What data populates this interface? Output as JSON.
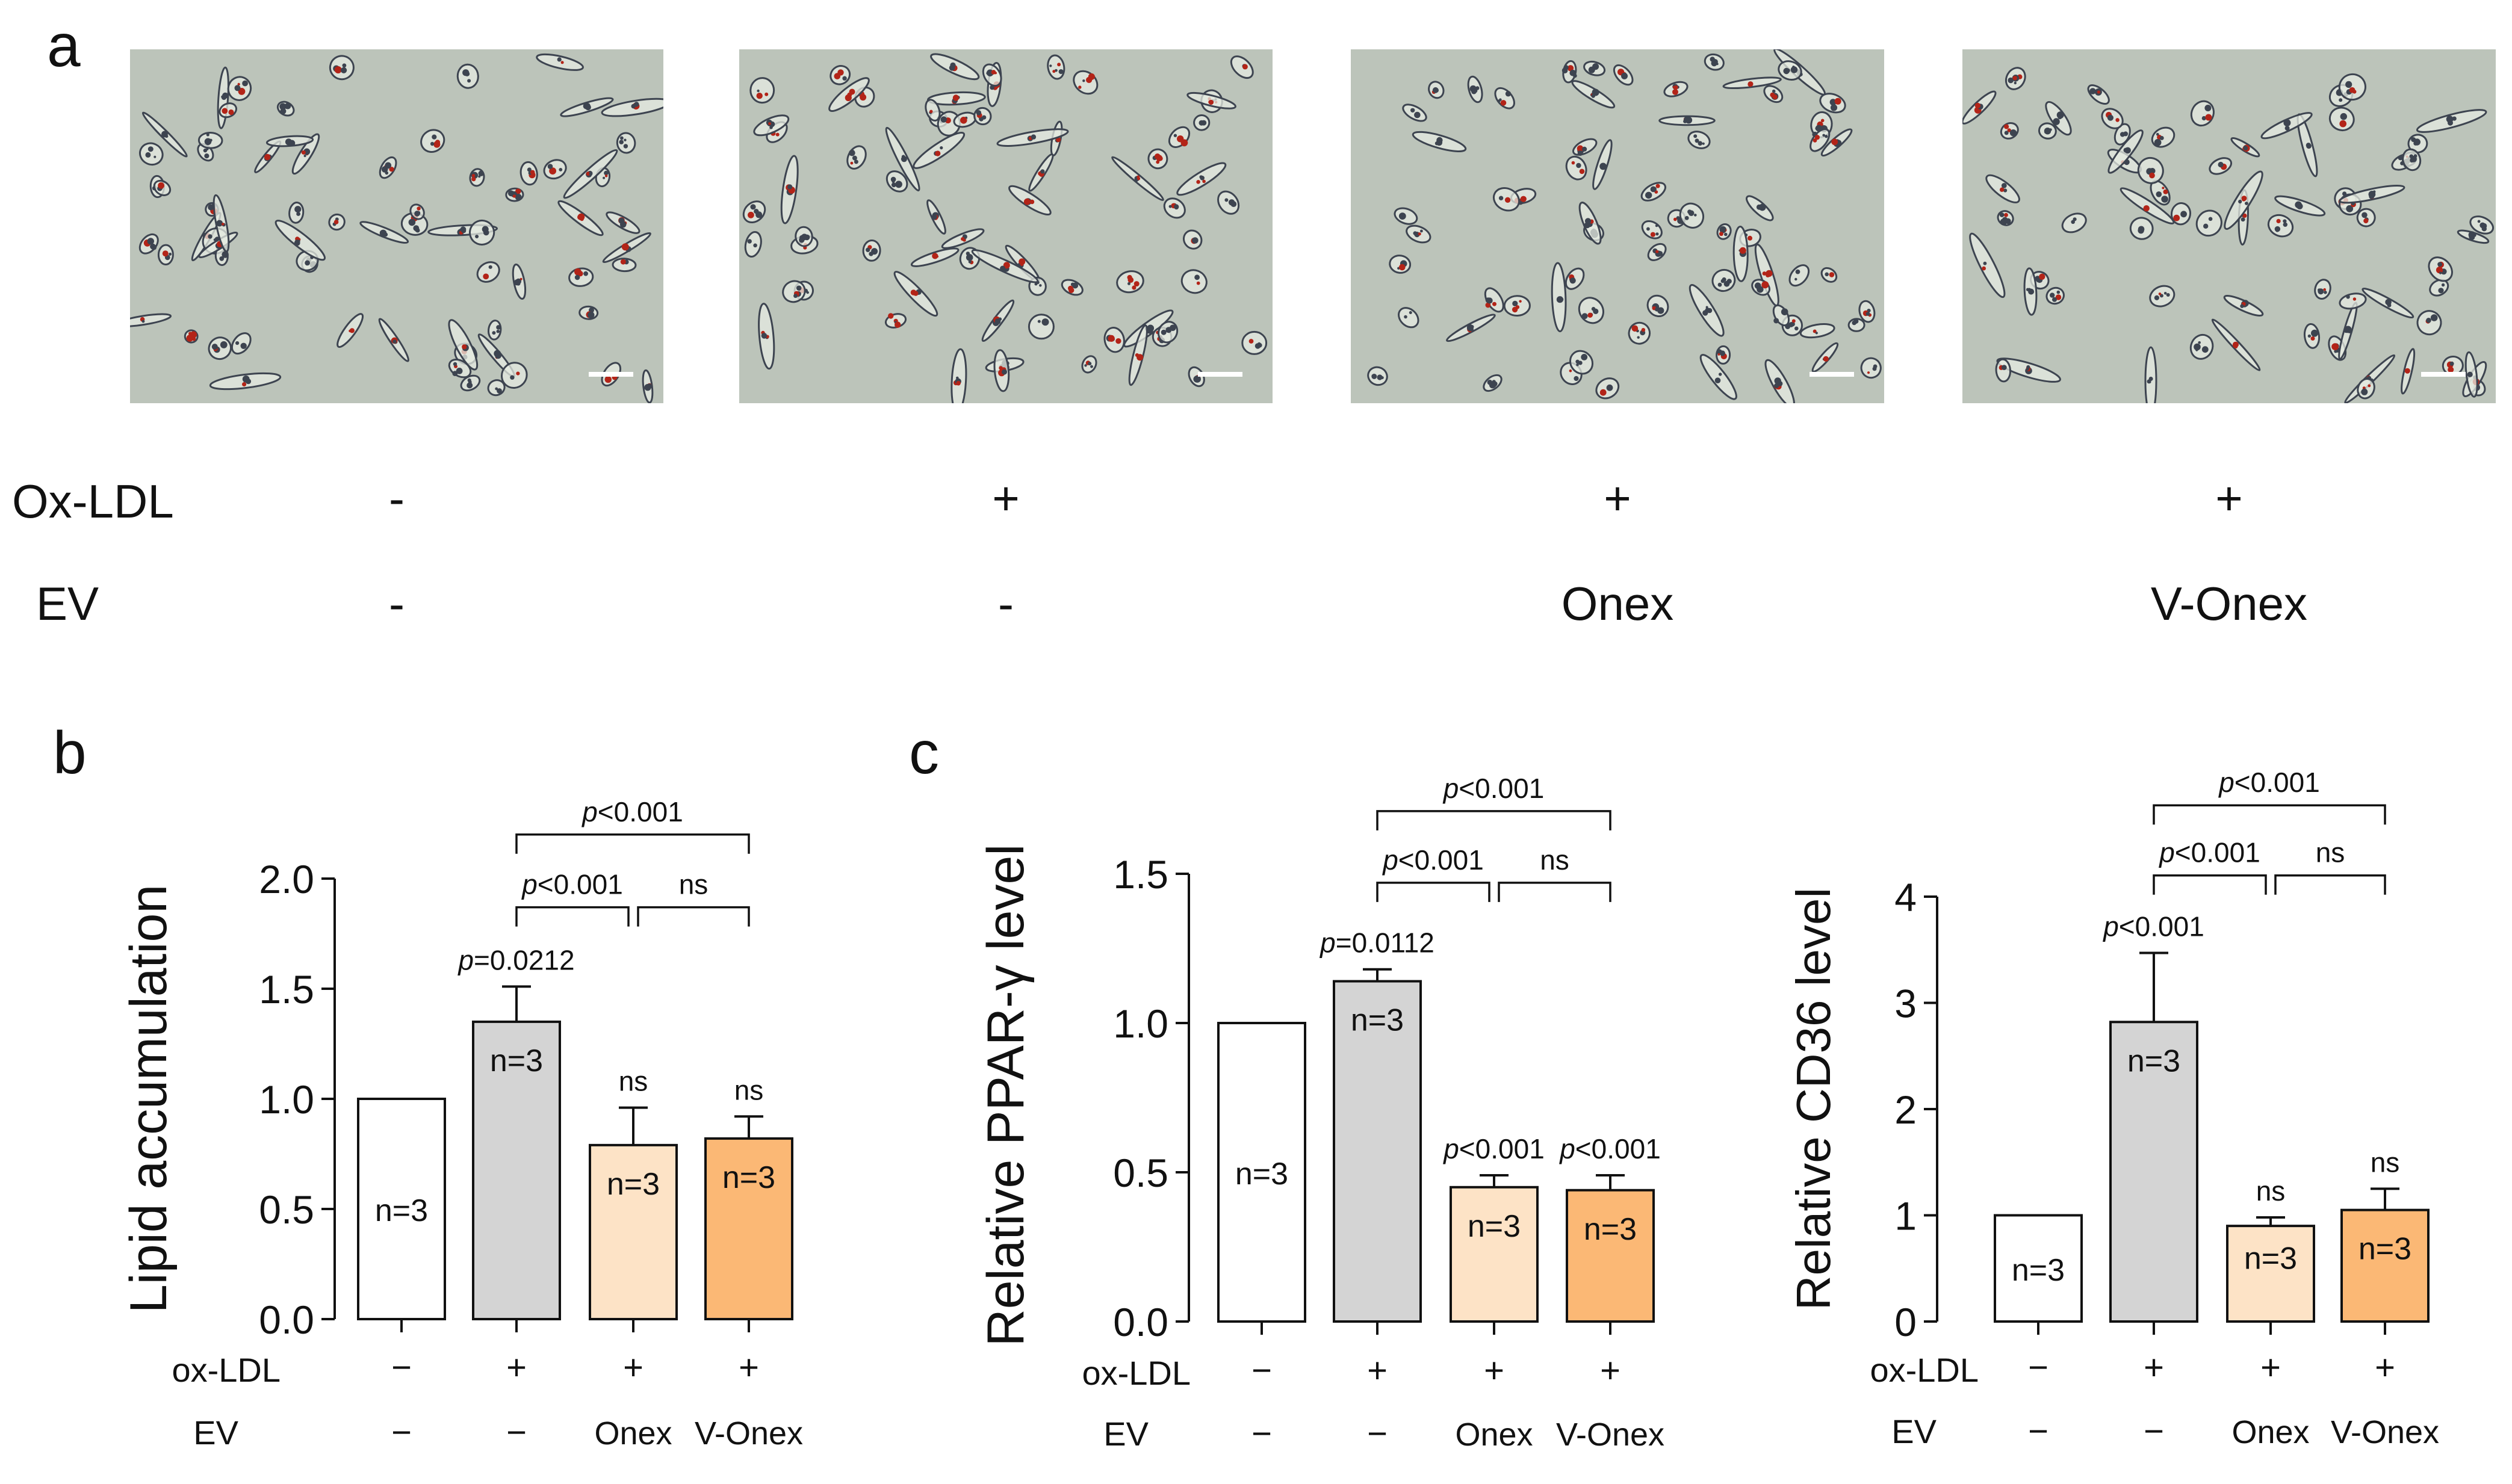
{
  "panel_a": {
    "label": "a",
    "images": [
      {
        "condition": "control (no ox-LDL, no EV)",
        "scale_bar": true
      },
      {
        "condition": "ox-LDL only",
        "scale_bar": true
      },
      {
        "condition": "ox-LDL + Onex",
        "scale_bar": true
      },
      {
        "condition": "ox-LDL + V-Onex",
        "scale_bar": true
      }
    ],
    "row_labels": {
      "oxldl": "Ox-LDL",
      "ev": "EV"
    },
    "oxldl_values": [
      "-",
      "+",
      "+",
      "+"
    ],
    "ev_values": [
      "-",
      "-",
      "Onex",
      "V-Onex"
    ]
  },
  "colors": {
    "bar_control": "#ffffff",
    "bar_oxldl": "#d4d4d4",
    "bar_onex": "#fde3c6",
    "bar_vonex": "#fbb875",
    "stroke": "#111111",
    "cell_bg": "#bcc4ba",
    "cell_dark": "#3d4450",
    "cell_red": "#b32418"
  },
  "chart_data": [
    {
      "panel": "b",
      "type": "bar",
      "ylabel": "Lipid accumulation",
      "ylim": [
        0,
        2.0
      ],
      "yticks": [
        0.0,
        0.5,
        1.0,
        1.5,
        2.0
      ],
      "ytick_labels": [
        "0.0",
        "0.5",
        "1.0",
        "1.5",
        "2.0"
      ],
      "row_labels": {
        "oxldl": "ox-LDL",
        "ev": "EV"
      },
      "oxldl_values": [
        "−",
        "+",
        "+",
        "+"
      ],
      "ev_values": [
        "−",
        "−",
        "Onex",
        "V-Onex"
      ],
      "values": [
        1.0,
        1.35,
        0.79,
        0.82
      ],
      "errors": [
        0,
        0.16,
        0.17,
        0.1
      ],
      "n_labels": [
        "n=3",
        "n=3",
        "n=3",
        "n=3"
      ],
      "bar_stats": [
        "",
        "p=0.0212",
        "ns",
        "ns"
      ],
      "brackets": [
        {
          "from": 1,
          "to": 2,
          "y": 1.87,
          "label": "p<0.001"
        },
        {
          "from": 2,
          "to": 3,
          "y": 1.87,
          "label": "ns"
        },
        {
          "from": 1,
          "to": 3,
          "y": 2.2,
          "label": "p<0.001"
        }
      ]
    },
    {
      "panel": "c",
      "type": "bar",
      "ylabel": "Relative PPAR-γ level",
      "ylim": [
        0,
        1.5
      ],
      "yticks": [
        0.0,
        0.5,
        1.0,
        1.5
      ],
      "ytick_labels": [
        "0.0",
        "0.5",
        "1.0",
        "1.5"
      ],
      "row_labels": {
        "oxldl": "ox-LDL",
        "ev": "EV"
      },
      "oxldl_values": [
        "−",
        "+",
        "+",
        "+"
      ],
      "ev_values": [
        "−",
        "−",
        "Onex",
        "V-Onex"
      ],
      "values": [
        1.0,
        1.14,
        0.45,
        0.44
      ],
      "errors": [
        0,
        0.04,
        0.04,
        0.05
      ],
      "n_labels": [
        "n=3",
        "n=3",
        "n=3",
        "n=3"
      ],
      "bar_stats": [
        "",
        "p=0.0112",
        "p<0.001",
        "p<0.001"
      ],
      "brackets": [
        {
          "from": 1,
          "to": 2,
          "y": 1.47,
          "label": "p<0.001"
        },
        {
          "from": 2,
          "to": 3,
          "y": 1.47,
          "label": "ns"
        },
        {
          "from": 1,
          "to": 3,
          "y": 1.71,
          "label": "p<0.001"
        }
      ]
    },
    {
      "panel": "c2",
      "type": "bar",
      "ylabel": "Relative CD36 level",
      "ylim": [
        0,
        4
      ],
      "yticks": [
        0,
        1,
        2,
        3,
        4
      ],
      "ytick_labels": [
        "0",
        "1",
        "2",
        "3",
        "4"
      ],
      "row_labels": {
        "oxldl": "ox-LDL",
        "ev": "EV"
      },
      "oxldl_values": [
        "−",
        "+",
        "+",
        "+"
      ],
      "ev_values": [
        "−",
        "−",
        "Onex",
        "V-Onex"
      ],
      "values": [
        1.0,
        2.82,
        0.9,
        1.05
      ],
      "errors": [
        0,
        0.65,
        0.08,
        0.2
      ],
      "n_labels": [
        "n=3",
        "n=3",
        "n=3",
        "n=3"
      ],
      "bar_stats": [
        "",
        "p<0.001",
        "ns",
        "ns"
      ],
      "brackets": [
        {
          "from": 1,
          "to": 2,
          "y": 4.2,
          "label": "p<0.001"
        },
        {
          "from": 2,
          "to": 3,
          "y": 4.2,
          "label": "ns"
        },
        {
          "from": 1,
          "to": 3,
          "y": 4.86,
          "label": "p<0.001"
        }
      ]
    }
  ],
  "panel_labels": {
    "b": "b",
    "c": "c"
  }
}
